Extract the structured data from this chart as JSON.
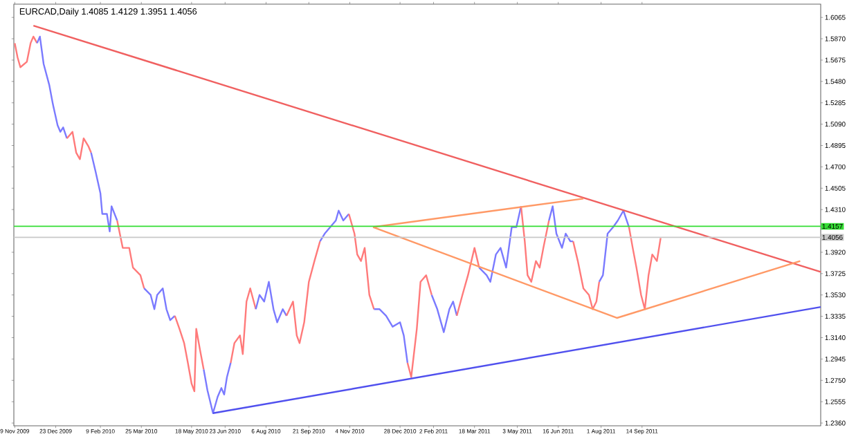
{
  "chart_data": {
    "type": "line",
    "title": "EURCAD,Daily  1.4085 1.4129 1.3951 1.4056",
    "xlim": [
      "2009-11-08",
      "2012-03-24"
    ],
    "ylim": [
      1.2335,
      1.6186
    ],
    "xticks": [
      {
        "value": "2009-11-09",
        "label": "9 Nov 2009"
      },
      {
        "value": "2009-12-23",
        "label": "23 Dec 2009"
      },
      {
        "value": "2010-02-09",
        "label": "9 Feb 2010"
      },
      {
        "value": "2010-03-25",
        "label": "25 Mar 2010"
      },
      {
        "value": "2010-05-18",
        "label": "18 May 2010"
      },
      {
        "value": "2010-06-23",
        "label": "23 Jun 2010"
      },
      {
        "value": "2010-08-06",
        "label": "6 Aug 2010"
      },
      {
        "value": "2010-09-21",
        "label": "21 Sep 2010"
      },
      {
        "value": "2010-11-04",
        "label": "4 Nov 2010"
      },
      {
        "value": "2010-12-28",
        "label": "28 Dec 2010"
      },
      {
        "value": "2011-02-02",
        "label": "2 Feb 2011"
      },
      {
        "value": "2011-03-18",
        "label": "18 Mar 2011"
      },
      {
        "value": "2011-05-03",
        "label": "3 May 2011"
      },
      {
        "value": "2011-06-16",
        "label": "16 Jun 2011"
      },
      {
        "value": "2011-08-01",
        "label": "1 Aug 2011"
      },
      {
        "value": "2011-09-14",
        "label": "14 Sep 2011"
      }
    ],
    "yticks": [
      {
        "value": 1.236,
        "label": "1.2360"
      },
      {
        "value": 1.2555,
        "label": "1.2555"
      },
      {
        "value": 1.275,
        "label": "1.2750"
      },
      {
        "value": 1.2945,
        "label": "1.2945"
      },
      {
        "value": 1.314,
        "label": "1.3140"
      },
      {
        "value": 1.3335,
        "label": "1.3335"
      },
      {
        "value": 1.353,
        "label": "1.3530"
      },
      {
        "value": 1.3725,
        "label": "1.3725"
      },
      {
        "value": 1.392,
        "label": "1.3920"
      },
      {
        "value": 1.431,
        "label": "1.4310"
      },
      {
        "value": 1.4505,
        "label": "1.4505"
      },
      {
        "value": 1.47,
        "label": "1.4700"
      },
      {
        "value": 1.4895,
        "label": "1.4895"
      },
      {
        "value": 1.509,
        "label": "1.5090"
      },
      {
        "value": 1.5285,
        "label": "1.5285"
      },
      {
        "value": 1.548,
        "label": "1.5480"
      },
      {
        "value": 1.5675,
        "label": "1.5675"
      },
      {
        "value": 1.587,
        "label": "1.5870"
      },
      {
        "value": 1.6065,
        "label": "1.6065"
      }
    ],
    "ref_lines": [
      {
        "axis": "y",
        "value": 1.4157,
        "label": "1.4157",
        "color": "#33dd33"
      },
      {
        "axis": "y",
        "value": 1.4056,
        "label": "1.4056",
        "color": "#c8c8c8"
      }
    ],
    "series": [
      {
        "color": "#ff7a7a",
        "x": [
          "2009-11-09",
          "2009-11-12",
          "2009-11-15",
          "2009-11-22",
          "2009-11-26",
          "2009-11-29",
          "2009-12-03"
        ],
        "values": [
          1.583,
          1.57,
          1.561,
          1.566,
          1.583,
          1.589,
          1.583
        ]
      },
      {
        "color": "#7a7aff",
        "x": [
          "2009-12-03",
          "2009-12-06",
          "2009-12-10",
          "2009-12-16",
          "2009-12-20",
          "2009-12-25",
          "2009-12-28",
          "2009-12-31",
          "2010-01-04"
        ],
        "values": [
          1.583,
          1.589,
          1.564,
          1.545,
          1.527,
          1.508,
          1.502,
          1.506,
          1.496
        ]
      },
      {
        "color": "#ff7a7a",
        "x": [
          "2010-01-04",
          "2010-01-10",
          "2010-01-14",
          "2010-01-18",
          "2010-01-22",
          "2010-01-27",
          "2010-01-30"
        ],
        "values": [
          1.496,
          1.502,
          1.483,
          1.477,
          1.496,
          1.489,
          1.483
        ]
      },
      {
        "color": "#7a7aff",
        "x": [
          "2010-01-30",
          "2010-02-04",
          "2010-02-09",
          "2010-02-11",
          "2010-02-16",
          "2010-02-19",
          "2010-02-21",
          "2010-02-27"
        ],
        "values": [
          1.483,
          1.465,
          1.446,
          1.427,
          1.427,
          1.411,
          1.434,
          1.421
        ]
      },
      {
        "color": "#ff7a7a",
        "x": [
          "2010-02-27",
          "2010-03-05",
          "2010-03-12",
          "2010-03-16",
          "2010-03-24",
          "2010-03-28"
        ],
        "values": [
          1.421,
          1.396,
          1.396,
          1.378,
          1.371,
          1.359
        ]
      },
      {
        "color": "#7a7aff",
        "x": [
          "2010-03-28",
          "2010-04-04",
          "2010-04-08",
          "2010-04-11",
          "2010-04-17",
          "2010-04-21",
          "2010-04-25",
          "2010-04-30"
        ],
        "values": [
          1.359,
          1.353,
          1.34,
          1.353,
          1.359,
          1.34,
          1.33,
          1.334
        ]
      },
      {
        "color": "#ff7a7a",
        "x": [
          "2010-04-30",
          "2010-05-05",
          "2010-05-10",
          "2010-05-14",
          "2010-05-18",
          "2010-05-21",
          "2010-05-23",
          "2010-05-27",
          "2010-05-31"
        ],
        "values": [
          1.334,
          1.322,
          1.309,
          1.291,
          1.272,
          1.265,
          1.322,
          1.303,
          1.285
        ]
      },
      {
        "color": "#7a7aff",
        "x": [
          "2010-05-31",
          "2010-06-04",
          "2010-06-10",
          "2010-06-15",
          "2010-06-19",
          "2010-06-22",
          "2010-06-25",
          "2010-06-29"
        ],
        "values": [
          1.285,
          1.266,
          1.245,
          1.26,
          1.268,
          1.262,
          1.278,
          1.291
        ]
      },
      {
        "color": "#ff7a7a",
        "x": [
          "2010-06-29",
          "2010-07-03",
          "2010-07-09",
          "2010-07-12",
          "2010-07-16",
          "2010-07-20",
          "2010-07-26"
        ],
        "values": [
          1.291,
          1.309,
          1.316,
          1.299,
          1.347,
          1.359,
          1.34
        ]
      },
      {
        "color": "#7a7aff",
        "x": [
          "2010-07-26",
          "2010-07-30",
          "2010-08-04",
          "2010-08-09",
          "2010-08-14",
          "2010-08-18",
          "2010-08-24",
          "2010-08-28"
        ],
        "values": [
          1.34,
          1.353,
          1.347,
          1.365,
          1.34,
          1.328,
          1.34,
          1.334
        ]
      },
      {
        "color": "#ff7a7a",
        "x": [
          "2010-08-28",
          "2010-09-04",
          "2010-09-08",
          "2010-09-11",
          "2010-09-16",
          "2010-09-21",
          "2010-09-27",
          "2010-10-03"
        ],
        "values": [
          1.334,
          1.347,
          1.316,
          1.309,
          1.328,
          1.365,
          1.384,
          1.402
        ]
      },
      {
        "color": "#7a7aff",
        "x": [
          "2010-10-03",
          "2010-10-08",
          "2010-10-14",
          "2010-10-20",
          "2010-10-23",
          "2010-10-28",
          "2010-11-03"
        ],
        "values": [
          1.402,
          1.409,
          1.415,
          1.421,
          1.43,
          1.421,
          1.427
        ]
      },
      {
        "color": "#ff7a7a",
        "x": [
          "2010-11-03",
          "2010-11-09",
          "2010-11-12",
          "2010-11-16",
          "2010-11-20",
          "2010-11-25",
          "2010-11-30"
        ],
        "values": [
          1.427,
          1.409,
          1.39,
          1.384,
          1.396,
          1.353,
          1.34
        ]
      },
      {
        "color": "#7a7aff",
        "x": [
          "2010-11-30",
          "2010-12-06",
          "2010-12-13",
          "2010-12-20",
          "2010-12-28",
          "2011-01-01",
          "2011-01-05"
        ],
        "values": [
          1.34,
          1.34,
          1.334,
          1.324,
          1.328,
          1.316,
          1.291
        ]
      },
      {
        "color": "#ff7a7a",
        "x": [
          "2011-01-05",
          "2011-01-09",
          "2011-01-15",
          "2011-01-19",
          "2011-01-25",
          "2011-01-31"
        ],
        "values": [
          1.291,
          1.278,
          1.322,
          1.365,
          1.371,
          1.353
        ]
      },
      {
        "color": "#7a7aff",
        "x": [
          "2011-01-31",
          "2011-02-06",
          "2011-02-13",
          "2011-02-19",
          "2011-02-23",
          "2011-02-27"
        ],
        "values": [
          1.353,
          1.34,
          1.319,
          1.34,
          1.347,
          1.334
        ]
      },
      {
        "color": "#ff7a7a",
        "x": [
          "2011-02-27",
          "2011-03-05",
          "2011-03-11",
          "2011-03-18",
          "2011-03-23"
        ],
        "values": [
          1.334,
          1.353,
          1.371,
          1.396,
          1.378
        ]
      },
      {
        "color": "#7a7aff",
        "x": [
          "2011-03-23",
          "2011-03-31",
          "2011-04-04",
          "2011-04-10",
          "2011-04-15",
          "2011-04-21",
          "2011-04-27",
          "2011-05-02",
          "2011-05-07"
        ],
        "values": [
          1.378,
          1.371,
          1.365,
          1.39,
          1.396,
          1.378,
          1.415,
          1.415,
          1.434
        ]
      },
      {
        "color": "#ff7a7a",
        "x": [
          "2011-05-07",
          "2011-05-11",
          "2011-05-14",
          "2011-05-18",
          "2011-05-23",
          "2011-05-27",
          "2011-05-31",
          "2011-06-06"
        ],
        "values": [
          1.434,
          1.402,
          1.371,
          1.365,
          1.384,
          1.378,
          1.396,
          1.421
        ]
      },
      {
        "color": "#7a7aff",
        "x": [
          "2011-06-06",
          "2011-06-10",
          "2011-06-14",
          "2011-06-20",
          "2011-06-24",
          "2011-06-29",
          "2011-07-02"
        ],
        "values": [
          1.421,
          1.434,
          1.409,
          1.396,
          1.409,
          1.402,
          1.402
        ]
      },
      {
        "color": "#ff7a7a",
        "x": [
          "2011-07-02",
          "2011-07-07",
          "2011-07-13",
          "2011-07-19",
          "2011-07-23",
          "2011-07-27",
          "2011-07-30"
        ],
        "values": [
          1.402,
          1.384,
          1.359,
          1.353,
          1.34,
          1.347,
          1.365
        ]
      },
      {
        "color": "#7a7aff",
        "x": [
          "2011-07-30",
          "2011-08-03",
          "2011-08-08",
          "2011-08-14",
          "2011-08-19",
          "2011-08-25",
          "2011-08-31"
        ],
        "values": [
          1.365,
          1.371,
          1.409,
          1.415,
          1.421,
          1.43,
          1.415
        ]
      },
      {
        "color": "#ff7a7a",
        "x": [
          "2011-08-31",
          "2011-09-04",
          "2011-09-08",
          "2011-09-13",
          "2011-09-17",
          "2011-09-21",
          "2011-09-25",
          "2011-09-30",
          "2011-10-04"
        ],
        "values": [
          1.415,
          1.396,
          1.378,
          1.353,
          1.34,
          1.371,
          1.39,
          1.384,
          1.405
        ]
      },
      {
        "color": "#f06060",
        "x": [
          "2009-11-29",
          "2012-03-24"
        ],
        "values": [
          1.599,
          1.374
        ]
      },
      {
        "color": "#ff9966",
        "x": [
          "2010-11-29",
          "2011-07-13"
        ],
        "values": [
          1.415,
          1.441
        ]
      },
      {
        "color": "#ff9966",
        "x": [
          "2010-11-29",
          "2011-08-18",
          "2012-03-02"
        ],
        "values": [
          1.415,
          1.332,
          1.384
        ]
      },
      {
        "color": "#5050ee",
        "x": [
          "2010-06-10",
          "2012-03-24"
        ],
        "values": [
          1.245,
          1.342
        ]
      }
    ]
  }
}
